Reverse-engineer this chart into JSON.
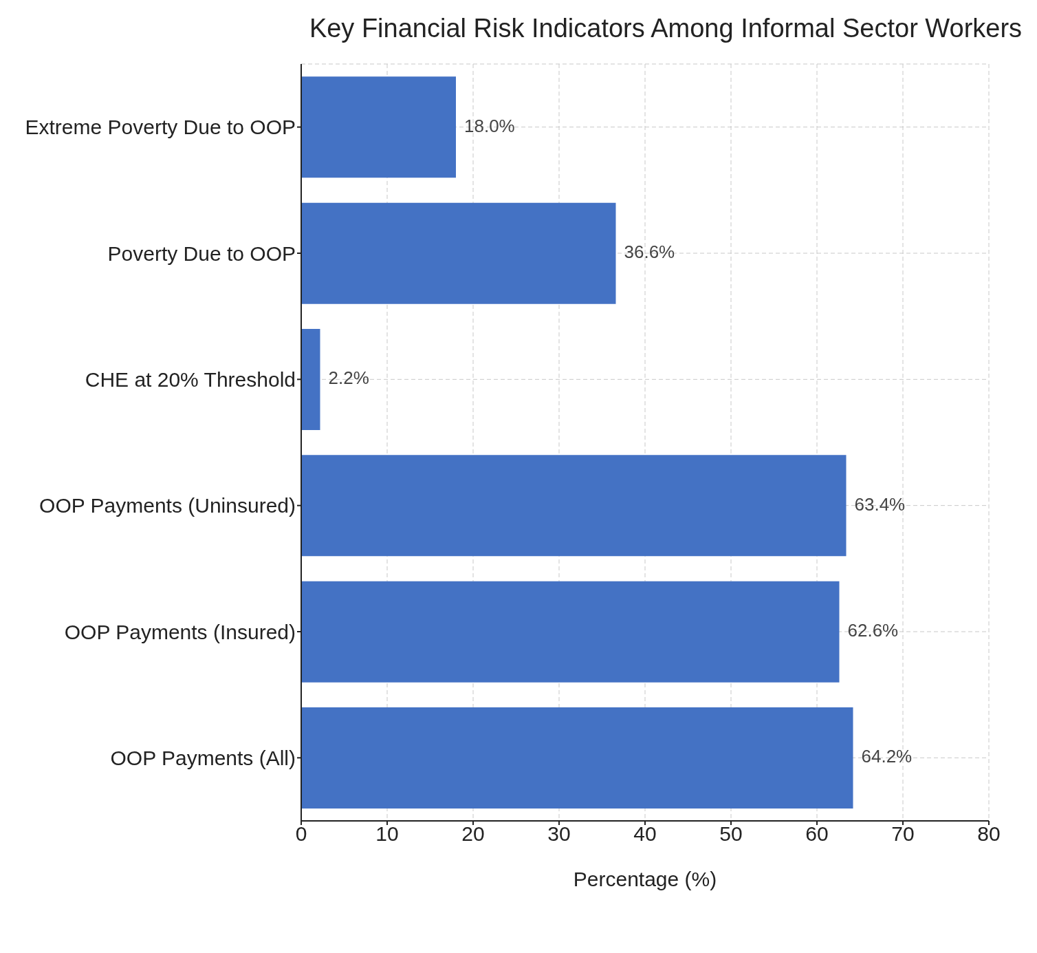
{
  "chart_data": {
    "type": "bar",
    "orientation": "horizontal",
    "title": "Key Financial Risk Indicators Among Informal Sector Workers",
    "xlabel": "Percentage (%)",
    "categories": [
      "Extreme Poverty Due to OOP",
      "Poverty Due to OOP",
      "CHE at 20% Threshold",
      "OOP Payments (Uninsured)",
      "OOP Payments (Insured)",
      "OOP Payments (All)"
    ],
    "values": [
      18.0,
      36.6,
      2.2,
      63.4,
      62.6,
      64.2
    ],
    "value_labels": [
      "18.0%",
      "36.6%",
      "2.2%",
      "63.4%",
      "62.6%",
      "64.2%"
    ],
    "color": "#4472c4",
    "xlim": [
      0,
      80
    ],
    "xticks": [
      0,
      10,
      20,
      30,
      40,
      50,
      60,
      70,
      80
    ],
    "grid": true
  }
}
